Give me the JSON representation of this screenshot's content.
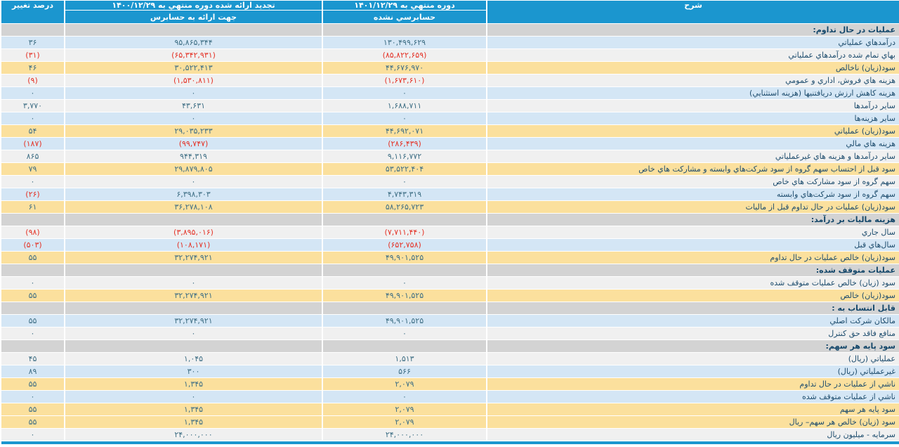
{
  "colors": {
    "header_blue": "#1b96cf",
    "row_yellow": "#fbe09d",
    "row_blue": "#d4e6f5",
    "row_section_gray": "#d3d3d3",
    "row_light": "#f0f0f0",
    "text_description": "#1e4d6e",
    "text_number": "#3f6f85",
    "text_negative": "#e43327"
  },
  "table": {
    "header": {
      "desc": "شرح",
      "current_title": "دوره منتهي به ۱۴۰۱/۱۲/۲۹",
      "current_subtitle": "حسابرسي نشده",
      "prior_title": "تجديد ارائه شده دوره منتهي به ۱۴۰۰/۱۲/۲۹",
      "prior_subtitle": "جهت ارائه به حسابرس",
      "change": "درصد تغيير"
    },
    "rows": [
      {
        "type": "section",
        "label": "عمليات در حال تداوم:"
      },
      {
        "type": "data",
        "bg": "blue",
        "label": "درآمدهاي عملياتي",
        "current": "۱۳۰,۴۹۹,۶۲۹",
        "prior": "۹۵,۸۶۵,۳۴۴",
        "change": "۳۶",
        "neg": []
      },
      {
        "type": "data",
        "bg": "light",
        "label": "بهاي تمام شده درآمدهاي عملياتي",
        "current": "(۸۵,۸۲۲,۶۵۹)",
        "prior": "(۶۵,۳۴۲,۹۳۱)",
        "change": "(۳۱)",
        "neg": [
          "current",
          "prior",
          "change"
        ]
      },
      {
        "type": "data",
        "bg": "yellow",
        "label": "سود(زيان) ناخالص",
        "current": "۴۴,۶۷۶,۹۷۰",
        "prior": "۳۰,۵۲۲,۴۱۳",
        "change": "۴۶",
        "neg": []
      },
      {
        "type": "data",
        "bg": "light",
        "label": "هزينه هاي فروش، اداري و عمومي",
        "current": "(۱,۶۷۳,۶۱۰)",
        "prior": "(۱,۵۳۰,۸۱۱)",
        "change": "(۹)",
        "neg": [
          "current",
          "prior",
          "change"
        ]
      },
      {
        "type": "data",
        "bg": "blue",
        "label": "هزينه كاهش ارزش دريافتنيها (هزينه استثنايي)",
        "current": "۰",
        "prior": "۰",
        "change": "۰",
        "neg": []
      },
      {
        "type": "data",
        "bg": "light",
        "label": "ساير درآمدها",
        "current": "۱,۶۸۸,۷۱۱",
        "prior": "۴۳,۶۳۱",
        "change": "۳,۷۷۰",
        "neg": []
      },
      {
        "type": "data",
        "bg": "blue",
        "label": "ساير هزينه‌ها",
        "current": "۰",
        "prior": "۰",
        "change": "۰",
        "neg": []
      },
      {
        "type": "data",
        "bg": "yellow",
        "label": "سود(زيان) عملياتي",
        "current": "۴۴,۶۹۲,۰۷۱",
        "prior": "۲۹,۰۳۵,۲۳۳",
        "change": "۵۴",
        "neg": []
      },
      {
        "type": "data",
        "bg": "blue",
        "label": "هزينه هاي مالي",
        "current": "(۲۸۶,۴۳۹)",
        "prior": "(۹۹,۷۴۷)",
        "change": "(۱۸۷)",
        "neg": [
          "current",
          "prior",
          "change"
        ]
      },
      {
        "type": "data",
        "bg": "light",
        "label": "ساير درآمدها و هزينه هاي غيرعملياتي",
        "current": "۹,۱۱۶,۷۷۲",
        "prior": "۹۴۴,۳۱۹",
        "change": "۸۶۵",
        "neg": []
      },
      {
        "type": "data",
        "bg": "yellow",
        "label": "سود قبل از احتساب سهم گروه از سود شركت‌هاي وابسته و مشاركت هاي خاص",
        "current": "۵۳,۵۲۲,۴۰۴",
        "prior": "۲۹,۸۷۹,۸۰۵",
        "change": "۷۹",
        "neg": []
      },
      {
        "type": "data",
        "bg": "light",
        "label": "سهم گروه از سود مشاركت هاي خاص",
        "current": "۰",
        "prior": "۰",
        "change": "۰",
        "neg": []
      },
      {
        "type": "data",
        "bg": "blue",
        "label": "سهم گروه از سود شركت‌هاي وابسته",
        "current": "۴,۷۴۳,۳۱۹",
        "prior": "۶,۳۹۸,۳۰۳",
        "change": "(۲۶)",
        "neg": [
          "change"
        ]
      },
      {
        "type": "data",
        "bg": "yellow",
        "label": "سود(زيان) عمليات در حال تداوم قبل از ماليات",
        "current": "۵۸,۲۶۵,۷۲۳",
        "prior": "۳۶,۲۷۸,۱۰۸",
        "change": "۶۱",
        "neg": []
      },
      {
        "type": "section",
        "label": "هزينه ماليات بر درآمد:"
      },
      {
        "type": "data",
        "bg": "light",
        "label": "سال جاري",
        "current": "(۷,۷۱۱,۴۴۰)",
        "prior": "(۳,۸۹۵,۰۱۶)",
        "change": "(۹۸)",
        "neg": [
          "current",
          "prior",
          "change"
        ]
      },
      {
        "type": "data",
        "bg": "blue",
        "label": "سال‌هاي قبل",
        "current": "(۶۵۲,۷۵۸)",
        "prior": "(۱۰۸,۱۷۱)",
        "change": "(۵۰۳)",
        "neg": [
          "current",
          "prior",
          "change"
        ]
      },
      {
        "type": "data",
        "bg": "yellow",
        "label": "سود(زيان) خالص عمليات در حال تداوم",
        "current": "۴۹,۹۰۱,۵۲۵",
        "prior": "۳۲,۲۷۴,۹۲۱",
        "change": "۵۵",
        "neg": []
      },
      {
        "type": "section",
        "label": "عمليات متوقف شده:"
      },
      {
        "type": "data",
        "bg": "light",
        "label": "سود (زيان) خالص عمليات متوقف شده",
        "current": "۰",
        "prior": "۰",
        "change": "۰",
        "neg": []
      },
      {
        "type": "data",
        "bg": "yellow",
        "label": "سود(زيان) خالص",
        "current": "۴۹,۹۰۱,۵۲۵",
        "prior": "۳۲,۲۷۴,۹۲۱",
        "change": "۵۵",
        "neg": []
      },
      {
        "type": "section",
        "label": "قابل انتساب به :"
      },
      {
        "type": "data",
        "bg": "blue",
        "label": "مالكان شركت اصلي",
        "current": "۴۹,۹۰۱,۵۲۵",
        "prior": "۳۲,۲۷۴,۹۲۱",
        "change": "۵۵",
        "neg": []
      },
      {
        "type": "data",
        "bg": "light",
        "label": "منافع فاقد حق كنترل",
        "current": "۰",
        "prior": "۰",
        "change": "۰",
        "neg": []
      },
      {
        "type": "section",
        "label": "سود پايه هر سهم:"
      },
      {
        "type": "data",
        "bg": "light",
        "label": "عملياتي (ريال)",
        "current": "۱,۵۱۳",
        "prior": "۱,۰۴۵",
        "change": "۴۵",
        "neg": []
      },
      {
        "type": "data",
        "bg": "blue",
        "label": "غيرعملياتي (ريال)",
        "current": "۵۶۶",
        "prior": "۳۰۰",
        "change": "۸۹",
        "neg": []
      },
      {
        "type": "data",
        "bg": "yellow",
        "label": "ناشي از عمليات در حال تداوم",
        "current": "۲,۰۷۹",
        "prior": "۱,۳۴۵",
        "change": "۵۵",
        "neg": []
      },
      {
        "type": "data",
        "bg": "blue",
        "label": "ناشي از عمليات متوقف شده",
        "current": "۰",
        "prior": "۰",
        "change": "۰",
        "neg": []
      },
      {
        "type": "data",
        "bg": "yellow",
        "label": "سود پايه هر سهم",
        "current": "۲,۰۷۹",
        "prior": "۱,۳۴۵",
        "change": "۵۵",
        "neg": []
      },
      {
        "type": "data",
        "bg": "yellow",
        "label": "سود (زيان) خالص هر سهم– ريال",
        "current": "۲,۰۷۹",
        "prior": "۱,۳۴۵",
        "change": "۵۵",
        "neg": []
      },
      {
        "type": "data",
        "bg": "light",
        "label": "سرمايه - ميليون ريال",
        "current": "۲۴,۰۰۰,۰۰۰",
        "prior": "۲۴,۰۰۰,۰۰۰",
        "change": "۰",
        "neg": []
      }
    ]
  }
}
